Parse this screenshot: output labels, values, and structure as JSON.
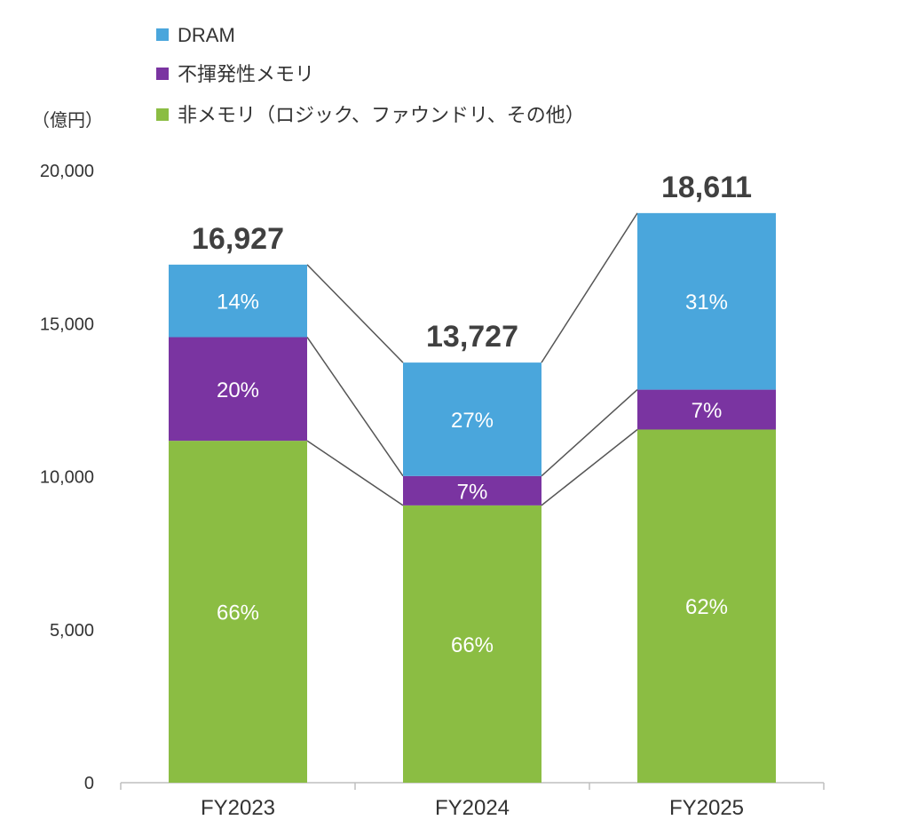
{
  "chart_data": {
    "type": "bar",
    "stacked": true,
    "unit_label": "（億円）",
    "categories": [
      "FY2023",
      "FY2024",
      "FY2025"
    ],
    "totals": [
      16927,
      13727,
      18611
    ],
    "total_labels": [
      "16,927",
      "13,727",
      "18,611"
    ],
    "series": [
      {
        "name": "非メモリ（ロジック、ファウンドリ、その他）",
        "color": "#8BBD43",
        "values": [
          11172,
          9060,
          11539
        ],
        "labels": [
          "66%",
          "66%",
          "62%"
        ]
      },
      {
        "name": "不揮発性メモリ",
        "color": "#7A34A1",
        "values": [
          3385,
          961,
          1303
        ],
        "labels": [
          "20%",
          "7%",
          "7%"
        ]
      },
      {
        "name": "DRAM",
        "color": "#4AA6DC",
        "values": [
          2370,
          3706,
          5769
        ],
        "labels": [
          "14%",
          "27%",
          "31%"
        ]
      }
    ],
    "legend": [
      "DRAM",
      "不揮発性メモリ",
      "非メモリ（ロジック、ファウンドリ、その他）"
    ],
    "ylim": [
      0,
      20000
    ],
    "yticks": [
      0,
      5000,
      10000,
      15000,
      20000
    ],
    "ytick_labels": [
      "0",
      "5,000",
      "10,000",
      "15,000",
      "20,000"
    ],
    "legend_position": "top",
    "connector_lines": true
  }
}
